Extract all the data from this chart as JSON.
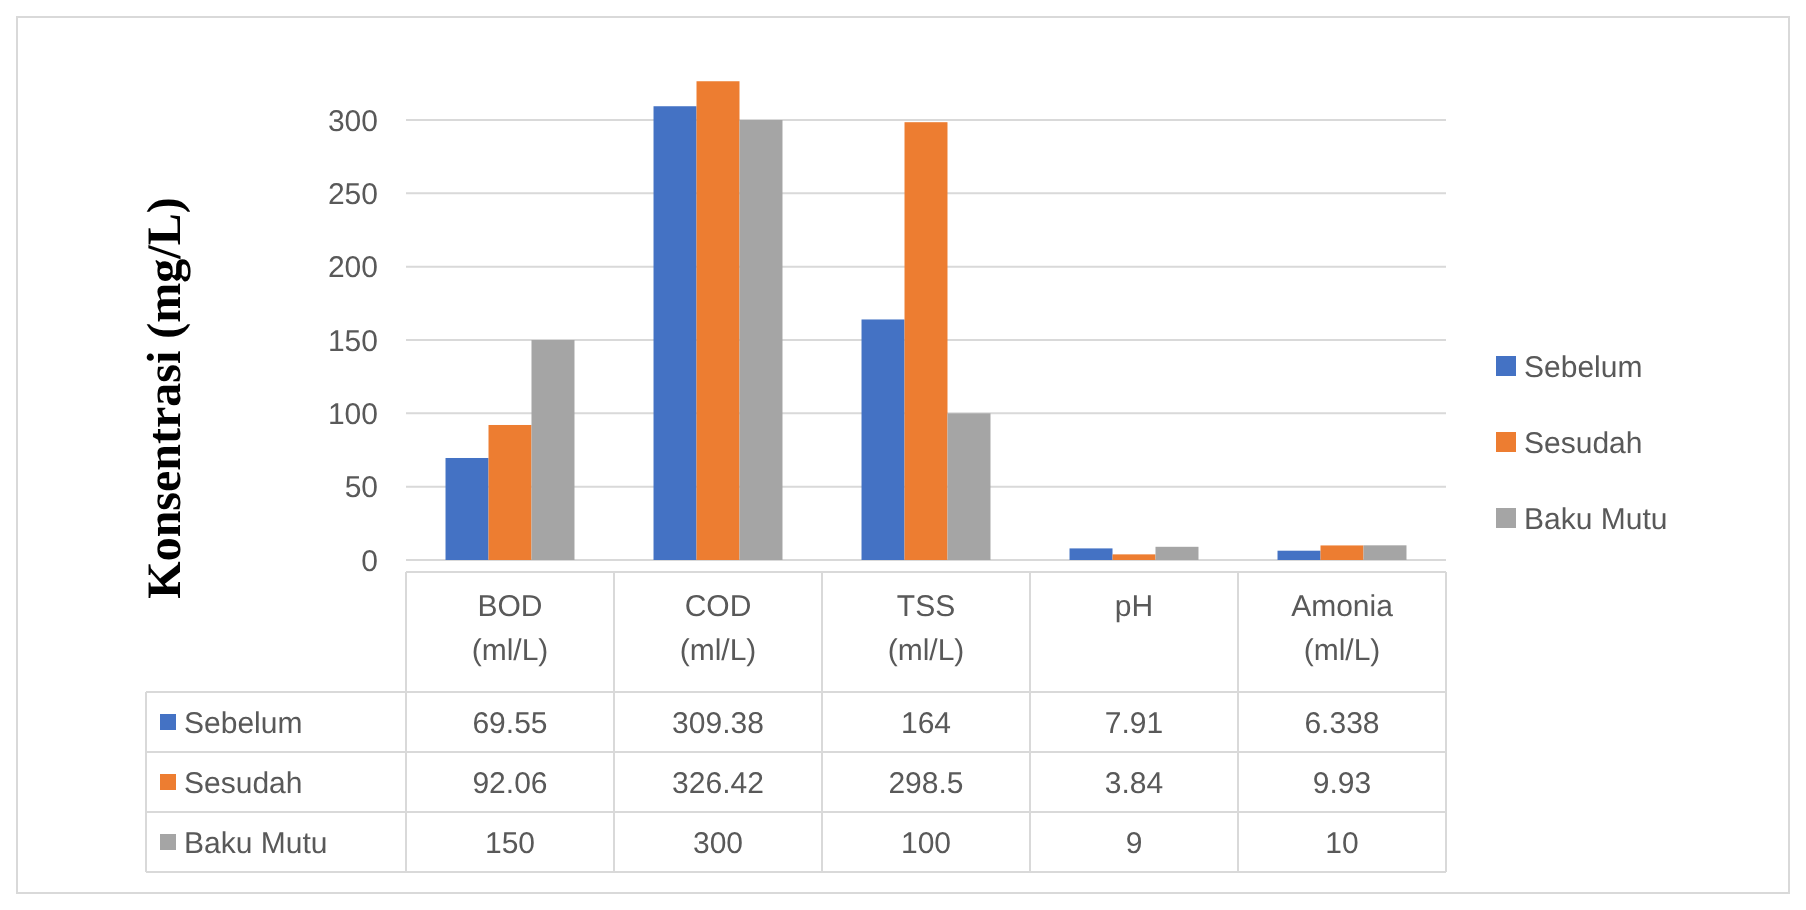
{
  "chart_data": {
    "type": "bar",
    "ylabel": "Konsentrasi (mg/L)",
    "categories": [
      "BOD (ml/L)",
      "COD (ml/L)",
      "TSS (ml/L)",
      "pH",
      "Amonia (ml/L)"
    ],
    "series": [
      {
        "name": "Sebelum",
        "color": "#4472c4",
        "values": [
          69.55,
          309.38,
          164,
          7.91,
          6.338
        ]
      },
      {
        "name": "Sesudah",
        "color": "#ed7d31",
        "values": [
          92.06,
          326.42,
          298.5,
          3.84,
          9.93
        ]
      },
      {
        "name": "Baku Mutu",
        "color": "#a5a5a5",
        "values": [
          150,
          300,
          100,
          9,
          10
        ]
      }
    ],
    "ylim": [
      0,
      330
    ],
    "yticks": [
      0,
      50,
      100,
      150,
      200,
      250,
      300
    ],
    "grid": "y",
    "legend": "right",
    "data_labels": true
  }
}
